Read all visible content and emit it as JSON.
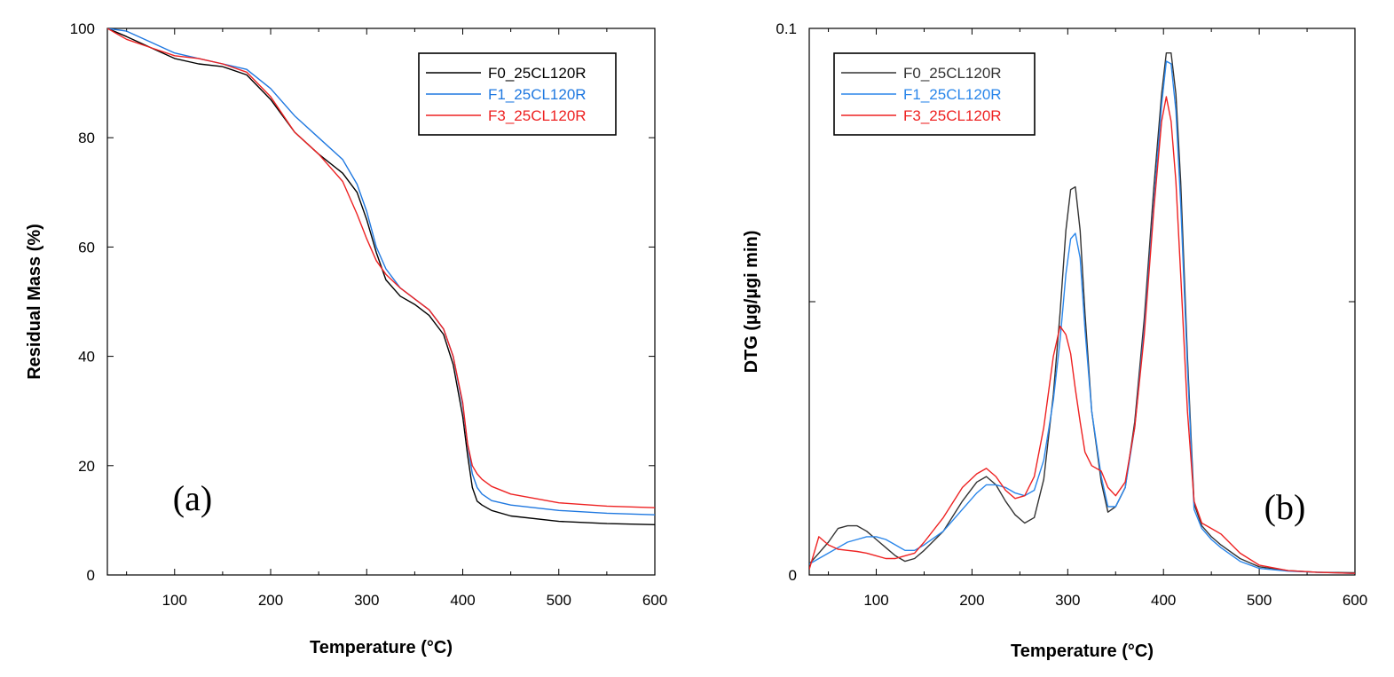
{
  "chart_data": [
    {
      "type": "line",
      "panel_label": "(a)",
      "xlabel": "Temperature (°C)",
      "ylabel": "Residual Mass (%)",
      "xlim": [
        30,
        600
      ],
      "ylim": [
        0,
        100
      ],
      "x_ticks": [
        100,
        200,
        300,
        400,
        500,
        600
      ],
      "y_ticks": [
        0,
        20,
        40,
        60,
        80,
        100
      ],
      "grid": false,
      "legend_position": "top-right",
      "series": [
        {
          "name": "F0_25CL120R",
          "color": "#000000",
          "x": [
            30,
            50,
            75,
            100,
            125,
            150,
            175,
            200,
            225,
            250,
            275,
            290,
            300,
            310,
            320,
            335,
            350,
            365,
            380,
            390,
            400,
            405,
            410,
            415,
            420,
            430,
            450,
            500,
            550,
            600
          ],
          "y": [
            100,
            98.5,
            96.5,
            94.5,
            93.5,
            93,
            91.5,
            87,
            81,
            77,
            73.5,
            70,
            65,
            59,
            54,
            51,
            49.5,
            47.5,
            44,
            38.5,
            29,
            22,
            16,
            13.5,
            12.8,
            11.8,
            10.8,
            9.8,
            9.4,
            9.2
          ]
        },
        {
          "name": "F1_25CL120R",
          "color": "#1f78e0",
          "x": [
            30,
            50,
            75,
            100,
            125,
            150,
            175,
            200,
            225,
            250,
            275,
            290,
            300,
            310,
            320,
            335,
            350,
            365,
            380,
            390,
            400,
            405,
            410,
            415,
            420,
            430,
            450,
            500,
            550,
            600
          ],
          "y": [
            100,
            99.5,
            97.5,
            95.5,
            94.5,
            93.5,
            92.5,
            89,
            84,
            80,
            76,
            71.5,
            66.5,
            60,
            56,
            52.5,
            50.5,
            48.5,
            45,
            40,
            31,
            24,
            18.5,
            16,
            14.8,
            13.6,
            12.8,
            11.8,
            11.3,
            11
          ]
        },
        {
          "name": "F3_25CL120R",
          "color": "#ee2222",
          "x": [
            30,
            50,
            75,
            100,
            125,
            150,
            175,
            200,
            225,
            250,
            275,
            290,
            300,
            310,
            320,
            335,
            350,
            365,
            380,
            390,
            400,
            405,
            410,
            415,
            420,
            430,
            450,
            500,
            550,
            600
          ],
          "y": [
            100,
            98,
            96.5,
            95,
            94.5,
            93.5,
            92,
            87.5,
            81,
            77,
            72,
            66,
            61.5,
            57.5,
            55,
            52.5,
            50.5,
            48.5,
            45,
            40,
            31.5,
            24,
            20,
            18.5,
            17.5,
            16.2,
            14.8,
            13.2,
            12.6,
            12.3
          ]
        }
      ]
    },
    {
      "type": "line",
      "panel_label": "(b)",
      "xlabel": "Temperature (°C)",
      "ylabel": "DTG (µg/µgi min)",
      "xlim": [
        30,
        600
      ],
      "ylim": [
        0,
        0.1
      ],
      "x_ticks": [
        100,
        200,
        300,
        400,
        500,
        600
      ],
      "y_ticks": [
        0,
        0.05,
        0.1
      ],
      "y_tick_labels": [
        "0",
        "",
        "0.1"
      ],
      "grid": false,
      "legend_position": "top-left",
      "series": [
        {
          "name": "F0_25CL120R",
          "color": "#333333",
          "x": [
            30,
            40,
            50,
            60,
            70,
            80,
            90,
            100,
            110,
            120,
            130,
            140,
            150,
            170,
            190,
            205,
            215,
            225,
            235,
            245,
            255,
            265,
            275,
            285,
            292,
            298,
            303,
            308,
            313,
            318,
            325,
            335,
            342,
            350,
            360,
            370,
            380,
            390,
            398,
            403,
            408,
            413,
            418,
            425,
            432,
            440,
            450,
            460,
            480,
            500,
            530,
            560,
            600
          ],
          "y": [
            0.002,
            0.004,
            0.006,
            0.0085,
            0.009,
            0.009,
            0.008,
            0.0065,
            0.005,
            0.0035,
            0.0025,
            0.003,
            0.0045,
            0.008,
            0.0135,
            0.017,
            0.018,
            0.0165,
            0.0135,
            0.011,
            0.0095,
            0.0105,
            0.0175,
            0.033,
            0.048,
            0.063,
            0.0705,
            0.071,
            0.063,
            0.048,
            0.03,
            0.017,
            0.0115,
            0.0125,
            0.016,
            0.028,
            0.047,
            0.071,
            0.088,
            0.0955,
            0.0955,
            0.088,
            0.072,
            0.04,
            0.013,
            0.009,
            0.007,
            0.0055,
            0.003,
            0.0015,
            0.0008,
            0.0005,
            0.0004
          ]
        },
        {
          "name": "F1_25CL120R",
          "color": "#2a86ea",
          "x": [
            30,
            40,
            50,
            60,
            70,
            80,
            90,
            100,
            110,
            120,
            130,
            140,
            150,
            170,
            190,
            205,
            215,
            225,
            235,
            245,
            255,
            265,
            275,
            285,
            292,
            298,
            303,
            308,
            313,
            318,
            325,
            335,
            342,
            350,
            360,
            370,
            380,
            390,
            398,
            403,
            408,
            413,
            418,
            425,
            432,
            440,
            450,
            460,
            480,
            500,
            530,
            560,
            600
          ],
          "y": [
            0.002,
            0.003,
            0.004,
            0.005,
            0.006,
            0.0065,
            0.007,
            0.007,
            0.0065,
            0.0055,
            0.0045,
            0.0045,
            0.0055,
            0.008,
            0.012,
            0.015,
            0.0165,
            0.0165,
            0.016,
            0.015,
            0.0145,
            0.0155,
            0.021,
            0.032,
            0.043,
            0.055,
            0.0615,
            0.0625,
            0.058,
            0.045,
            0.03,
            0.018,
            0.0125,
            0.0125,
            0.016,
            0.027,
            0.045,
            0.068,
            0.086,
            0.094,
            0.0935,
            0.085,
            0.068,
            0.038,
            0.012,
            0.0085,
            0.0065,
            0.005,
            0.0025,
            0.0012,
            0.0007,
            0.0005,
            0.0003
          ]
        },
        {
          "name": "F3_25CL120R",
          "color": "#ee2222",
          "x": [
            30,
            40,
            50,
            60,
            70,
            80,
            90,
            100,
            110,
            120,
            130,
            140,
            150,
            170,
            190,
            205,
            215,
            225,
            235,
            245,
            255,
            265,
            275,
            285,
            292,
            298,
            303,
            308,
            313,
            318,
            325,
            335,
            342,
            350,
            360,
            370,
            380,
            390,
            398,
            403,
            408,
            413,
            418,
            425,
            432,
            440,
            450,
            460,
            480,
            500,
            530,
            560,
            600
          ],
          "y": [
            0.001,
            0.007,
            0.0055,
            0.0047,
            0.0045,
            0.0043,
            0.004,
            0.0035,
            0.003,
            0.003,
            0.0035,
            0.004,
            0.006,
            0.0105,
            0.016,
            0.0185,
            0.0195,
            0.018,
            0.0155,
            0.014,
            0.0145,
            0.018,
            0.027,
            0.04,
            0.0455,
            0.044,
            0.0405,
            0.034,
            0.028,
            0.0225,
            0.02,
            0.019,
            0.016,
            0.0145,
            0.017,
            0.027,
            0.044,
            0.067,
            0.083,
            0.0875,
            0.083,
            0.072,
            0.055,
            0.03,
            0.0135,
            0.0095,
            0.0085,
            0.0075,
            0.004,
            0.0018,
            0.0008,
            0.0005,
            0.0003
          ]
        }
      ]
    }
  ]
}
